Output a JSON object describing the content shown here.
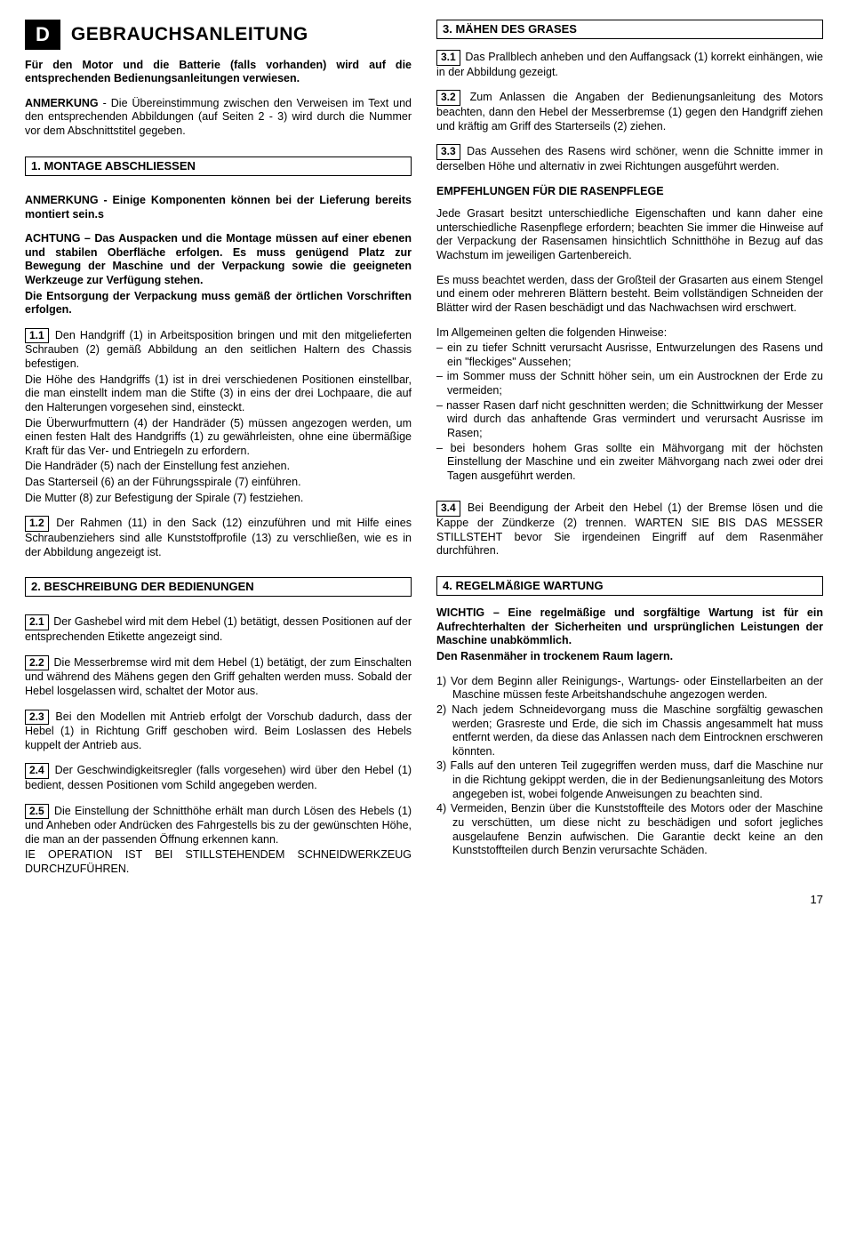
{
  "header": {
    "lang_badge": "D",
    "main_title": "GEBRAUCHSANLEITUNG"
  },
  "left": {
    "intro_bold": "Für den Motor und die Batterie (falls vorhanden) wird auf die entsprechenden Bedienungsanleitungen verwiesen.",
    "anmerkung_label": "ANMERKUNG",
    "anmerkung_text": " - Die Übereinstimmung zwischen den Verweisen im Text und den entsprechenden Abbildungen (auf Seiten 2 - 3) wird durch die Nummer vor dem Abschnittstitel gegeben.",
    "section1_heading": "1.  MONTAGE ABSCHLIESSEN",
    "note1_label": "ANMERKUNG - ",
    "note1_text": "Einige Komponenten können bei der Lieferung bereits montiert sein.s",
    "achtung_block": "ACHTUNG – Das Auspacken und die Montage müssen auf einer ebenen und stabilen Oberfläche erfolgen. Es muss genügend Platz zur Bewegung der Maschine und der Verpackung sowie die geeigneten Werkzeuge zur Verfügung stehen.",
    "entsorgung_block": "Die Entsorgung der Verpackung muss gemäß der örtlichen Vorschriften erfolgen.",
    "box_1_1": "1.1",
    "p_1_1_a": " Den Handgriff (1) in Arbeitsposition bringen und mit den mitgelieferten Schrauben (2) gemäß Abbildung an den seitlichen Haltern des Chassis befestigen.",
    "p_1_1_b": "Die Höhe des Handgriffs (1) ist in drei verschiedenen Positionen einstellbar, die man einstellt indem man die Stifte (3) in eins der drei Lochpaare, die auf den Halterungen vorgesehen sind, einsteckt.",
    "p_1_1_c": "Die Überwurfmuttern (4) der Handräder (5) müssen angezogen werden, um einen festen Halt des Handgriffs (1) zu gewährleisten, ohne eine übermäßige Kraft für das Ver- und Entriegeln zu erfordern.",
    "p_1_1_d": "Die Handräder (5) nach der Einstellung fest anziehen.",
    "p_1_1_e": "Das Starterseil (6) an der Führungsspirale (7) einführen.",
    "p_1_1_f": "Die Mutter (8) zur Befestigung der Spirale (7) festziehen.",
    "box_1_2": "1.2",
    "p_1_2": " Der Rahmen (11) in den Sack (12) einzuführen und mit Hilfe eines Schraubenziehers sind alle Kunststoffprofile (13) zu verschließen, wie es in der Abbildung angezeigt ist.",
    "section2_heading": "2. BESCHREIBUNG DER BEDIENUNGEN",
    "box_2_1": "2.1",
    "p_2_1": " Der Gashebel wird mit dem Hebel (1) betätigt, dessen Positionen auf der entsprechenden Etikette angezeigt sind.",
    "box_2_2": "2.2",
    "p_2_2": " Die Messerbremse wird mit dem Hebel (1) betätigt, der zum Einschalten und während des Mähens gegen den Griff gehalten werden muss. Sobald der Hebel losgelassen wird, schaltet der Motor aus.",
    "box_2_3": "2.3",
    "p_2_3": " Bei den Modellen mit Antrieb erfolgt der Vorschub dadurch, dass der Hebel (1) in Richtung Griff geschoben wird. Beim Loslassen des Hebels kuppelt der Antrieb aus.",
    "box_2_4": "2.4",
    "p_2_4": " Der Geschwindigkeitsregler (falls vorgesehen) wird über den Hebel (1) bedient, dessen Positionen vom Schild angegeben werden.",
    "box_2_5": "2.5",
    "p_2_5": " Die Einstellung der Schnitthöhe erhält man durch Lösen des Hebels (1) und Anheben oder Andrücken des Fahrgestells bis zu der gewünschten Höhe, die man an der passenden Öffnung erkennen kann.",
    "p_2_5b": "IE OPERATION IST BEI STILLSTEHENDEM SCHNEID­WERKZEUG DURCHZUFÜHREN."
  },
  "right": {
    "section3_heading": "3. MÄHEN DES GRASES",
    "box_3_1": "3.1",
    "p_3_1": " Das Prallblech anheben und den Auffangsack (1) korrekt einhängen, wie in der Abbildung gezeigt.",
    "box_3_2": "3.2",
    "p_3_2": " Zum Anlassen die Angaben der Bedienungs­anleitung des Motors beachten, dann den Hebel der Messerbremse (1) gegen den Handgriff ziehen und kräftig am Griff des Starterseils (2) ziehen.",
    "box_3_3": "3.3",
    "p_3_3": " Das Aussehen des Rasens wird schöner, wenn die Schnitte immer in derselben Höhe und alternativ in zwei Richtungen ausgeführt werden.",
    "empfeh_heading": "EMPFEHLUNGEN FÜR DIE RASENPFLEGE",
    "p_emp_1": "Jede Grasart besitzt unterschiedliche Eigenschaften und kann daher eine unterschiedliche Rasenpflege erfordern; beachten Sie immer die Hinweise auf der Verpackung der Rasensamen hinsichtlich Schnitthöhe in Bezug auf das Wachstum im jeweiligen Gartenbereich.",
    "p_emp_2": "Es muss beachtet werden, dass der Großteil der Grasarten aus einem Stengel und einem oder mehreren Blättern besteht. Beim vollständigen Schneiden der Blätter wird der Rasen beschädigt und das Nachwachsen wird erschwert.",
    "p_emp_3": "Im Allgemeinen gelten die folgenden Hinweise:",
    "emp_items": [
      "ein zu tiefer Schnitt verursacht Ausrisse, Entwurzelungen des Rasens und ein \"fleckiges\" Aussehen;",
      "im Sommer muss der Schnitt höher sein, um ein Austrocknen der Erde zu vermeiden;",
      "nasser Rasen darf nicht geschnitten werden; die Schnittwirkung der Messer wird durch das anhaftende Gras vermindert und verursacht Ausrisse im Rasen;",
      "bei besonders hohem Gras sollte ein Mähvorgang mit der höchsten Einstellung der Maschine und ein zweiter Mähvorgang nach zwei oder drei Tagen ausgeführt werden."
    ],
    "box_3_4": "3.4",
    "p_3_4": " Bei Beendigung der Arbeit den Hebel (1) der Bremse lösen und die Kappe der Zündkerze (2) trennen. WARTEN SIE BIS DAS MESSER STILLSTEHT bevor Sie irgendeinen Eingriff auf dem Rasenmäher durchführen.",
    "section4_heading": "4. REGELMÄßIGE WARTUNG",
    "wichtig_block": "WICHTIG – Eine regelmäßige und sorgfältige Wartung ist für ein Aufrechterhalten der Sicherheiten und ursprünglichen Leistungen der Maschine unabkömmlich.",
    "lager_block": "Den Rasenmäher in trockenem Raum lagern.",
    "num_items": [
      "Vor dem Beginn aller Reinigungs-, Wartungs- oder Ein­stellarbeiten an der Maschine müssen feste Arbeits­handschuhe angezogen werden.",
      "Nach jedem Schneidevorgang muss die Maschine sorgfältig gewaschen werden; Grasreste und Erde, die sich im Chassis angesammelt hat muss entfernt werden, da diese das Anlassen nach dem Eintrocknen erschweren könnten.",
      "Falls auf den unteren Teil zugegriffen werden muss, darf die Maschine nur in die Richtung gekippt werden, die in der Bedienungsanleitung des Motors angegeben ist, wobei folgende Anweisungen zu beachten sind.",
      "Vermeiden, Benzin über die Kunststoffteile des Motors oder der Maschine zu verschütten, um diese nicht zu beschädigen und sofort jegliches ausgelaufene Benzin aufwischen. Die Garantie deckt keine an den Kunststoffteilen durch Benzin verursachte Schäden."
    ]
  },
  "page_number": "17"
}
